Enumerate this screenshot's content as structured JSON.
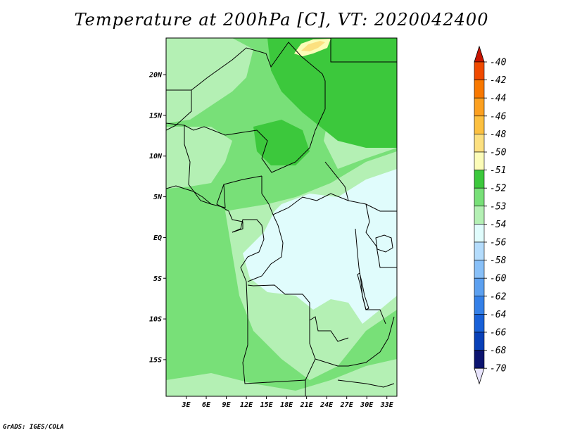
{
  "title": "Temperature at 200hPa [C], VT: 2020042400",
  "credit": "GrADS: IGES/COLA",
  "map": {
    "lat_range": [
      -19.5,
      24.5
    ],
    "lon_range": [
      0,
      34.5
    ],
    "lat_ticks": [
      {
        "value": 20,
        "label": "20N"
      },
      {
        "value": 15,
        "label": "15N"
      },
      {
        "value": 10,
        "label": "10N"
      },
      {
        "value": 5,
        "label": "5N"
      },
      {
        "value": 0,
        "label": "EQ"
      },
      {
        "value": -5,
        "label": "5S"
      },
      {
        "value": -10,
        "label": "10S"
      },
      {
        "value": -15,
        "label": "15S"
      }
    ],
    "lon_ticks": [
      {
        "value": 3,
        "label": "3E"
      },
      {
        "value": 6,
        "label": "6E"
      },
      {
        "value": 9,
        "label": "9E"
      },
      {
        "value": 12,
        "label": "12E"
      },
      {
        "value": 15,
        "label": "15E"
      },
      {
        "value": 18,
        "label": "18E"
      },
      {
        "value": 21,
        "label": "21E"
      },
      {
        "value": 24,
        "label": "24E"
      },
      {
        "value": 27,
        "label": "27E"
      },
      {
        "value": 30,
        "label": "30E"
      },
      {
        "value": 33,
        "label": "33E"
      }
    ]
  },
  "colorbar": [
    {
      "label": "-40",
      "color": "#e01e00"
    },
    {
      "label": "-42",
      "color": "#f04a00"
    },
    {
      "label": "-44",
      "color": "#f87800"
    },
    {
      "label": "-46",
      "color": "#fca020"
    },
    {
      "label": "-48",
      "color": "#fcc040"
    },
    {
      "label": "-50",
      "color": "#fce080"
    },
    {
      "label": "-51",
      "color": "#fcfcb8"
    },
    {
      "label": "-52",
      "color": "#3cc83c"
    },
    {
      "label": "-53",
      "color": "#78e078"
    },
    {
      "label": "-54",
      "color": "#b4f0b4"
    },
    {
      "label": "-56",
      "color": "#e0fcfc"
    },
    {
      "label": "-58",
      "color": "#b4dcfc"
    },
    {
      "label": "-60",
      "color": "#88c0f8"
    },
    {
      "label": "-62",
      "color": "#5ca0f0"
    },
    {
      "label": "-64",
      "color": "#3480e8"
    },
    {
      "label": "-66",
      "color": "#1860d8"
    },
    {
      "label": "-68",
      "color": "#0840b8"
    },
    {
      "label": "-70",
      "color": "#0c1470"
    }
  ],
  "colorbar_ends": {
    "top_color": "#c81400",
    "bottom_color": "#e8e4fc"
  }
}
